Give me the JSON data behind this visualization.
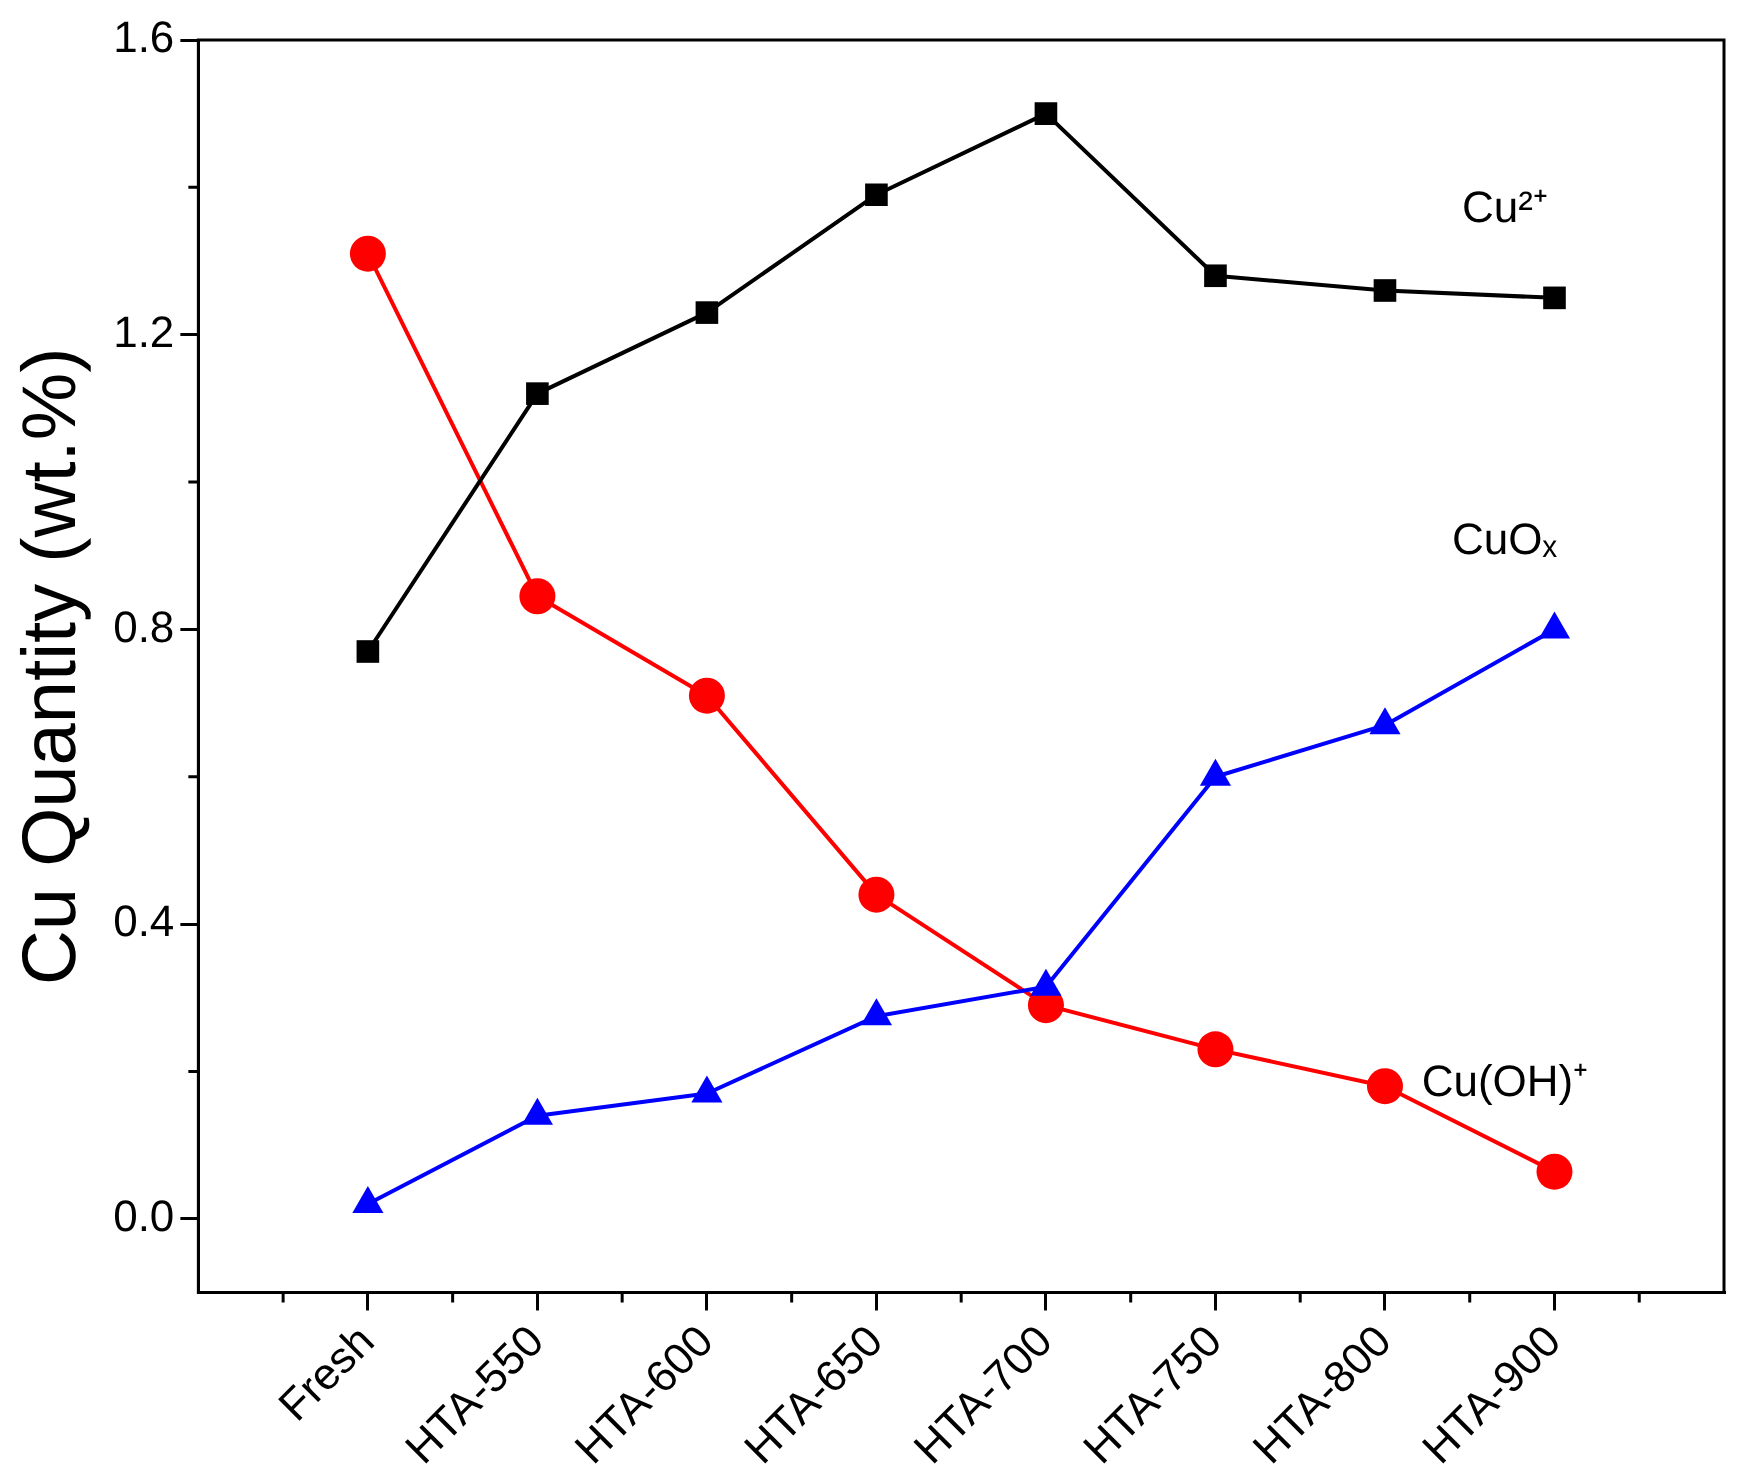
{
  "chart_data": {
    "type": "line",
    "ylabel": "Cu Quantity (wt.%)",
    "categories": [
      "Fresh",
      "HTA-550",
      "HTA-600",
      "HTA-650",
      "HTA-700",
      "HTA-750",
      "HTA-800",
      "HTA-900"
    ],
    "series": [
      {
        "name": "Cu²⁺",
        "color": "#000000",
        "marker": "square",
        "values": [
          0.77,
          1.12,
          1.23,
          1.39,
          1.5,
          1.28,
          1.26,
          1.25
        ]
      },
      {
        "name": "CuOₓ",
        "color": "#0000ff",
        "marker": "triangle",
        "values": [
          0.02,
          0.14,
          0.17,
          0.275,
          0.315,
          0.6,
          0.67,
          0.8
        ]
      },
      {
        "name": "Cu(OH)⁺",
        "color": "#ff0000",
        "marker": "circle",
        "values": [
          1.31,
          0.845,
          0.71,
          0.44,
          0.29,
          0.23,
          0.18,
          0.064
        ]
      }
    ],
    "ylim": [
      -0.1,
      1.6
    ],
    "yticks": [
      {
        "value": 0,
        "label": "0.0"
      },
      {
        "value": 0.4,
        "label": "0.4"
      },
      {
        "value": 0.8,
        "label": "0.8"
      },
      {
        "value": 1.2,
        "label": "1.2"
      },
      {
        "value": 1.6,
        "label": "1.6"
      }
    ],
    "grid": false,
    "legend": false,
    "line_style": "solid"
  }
}
